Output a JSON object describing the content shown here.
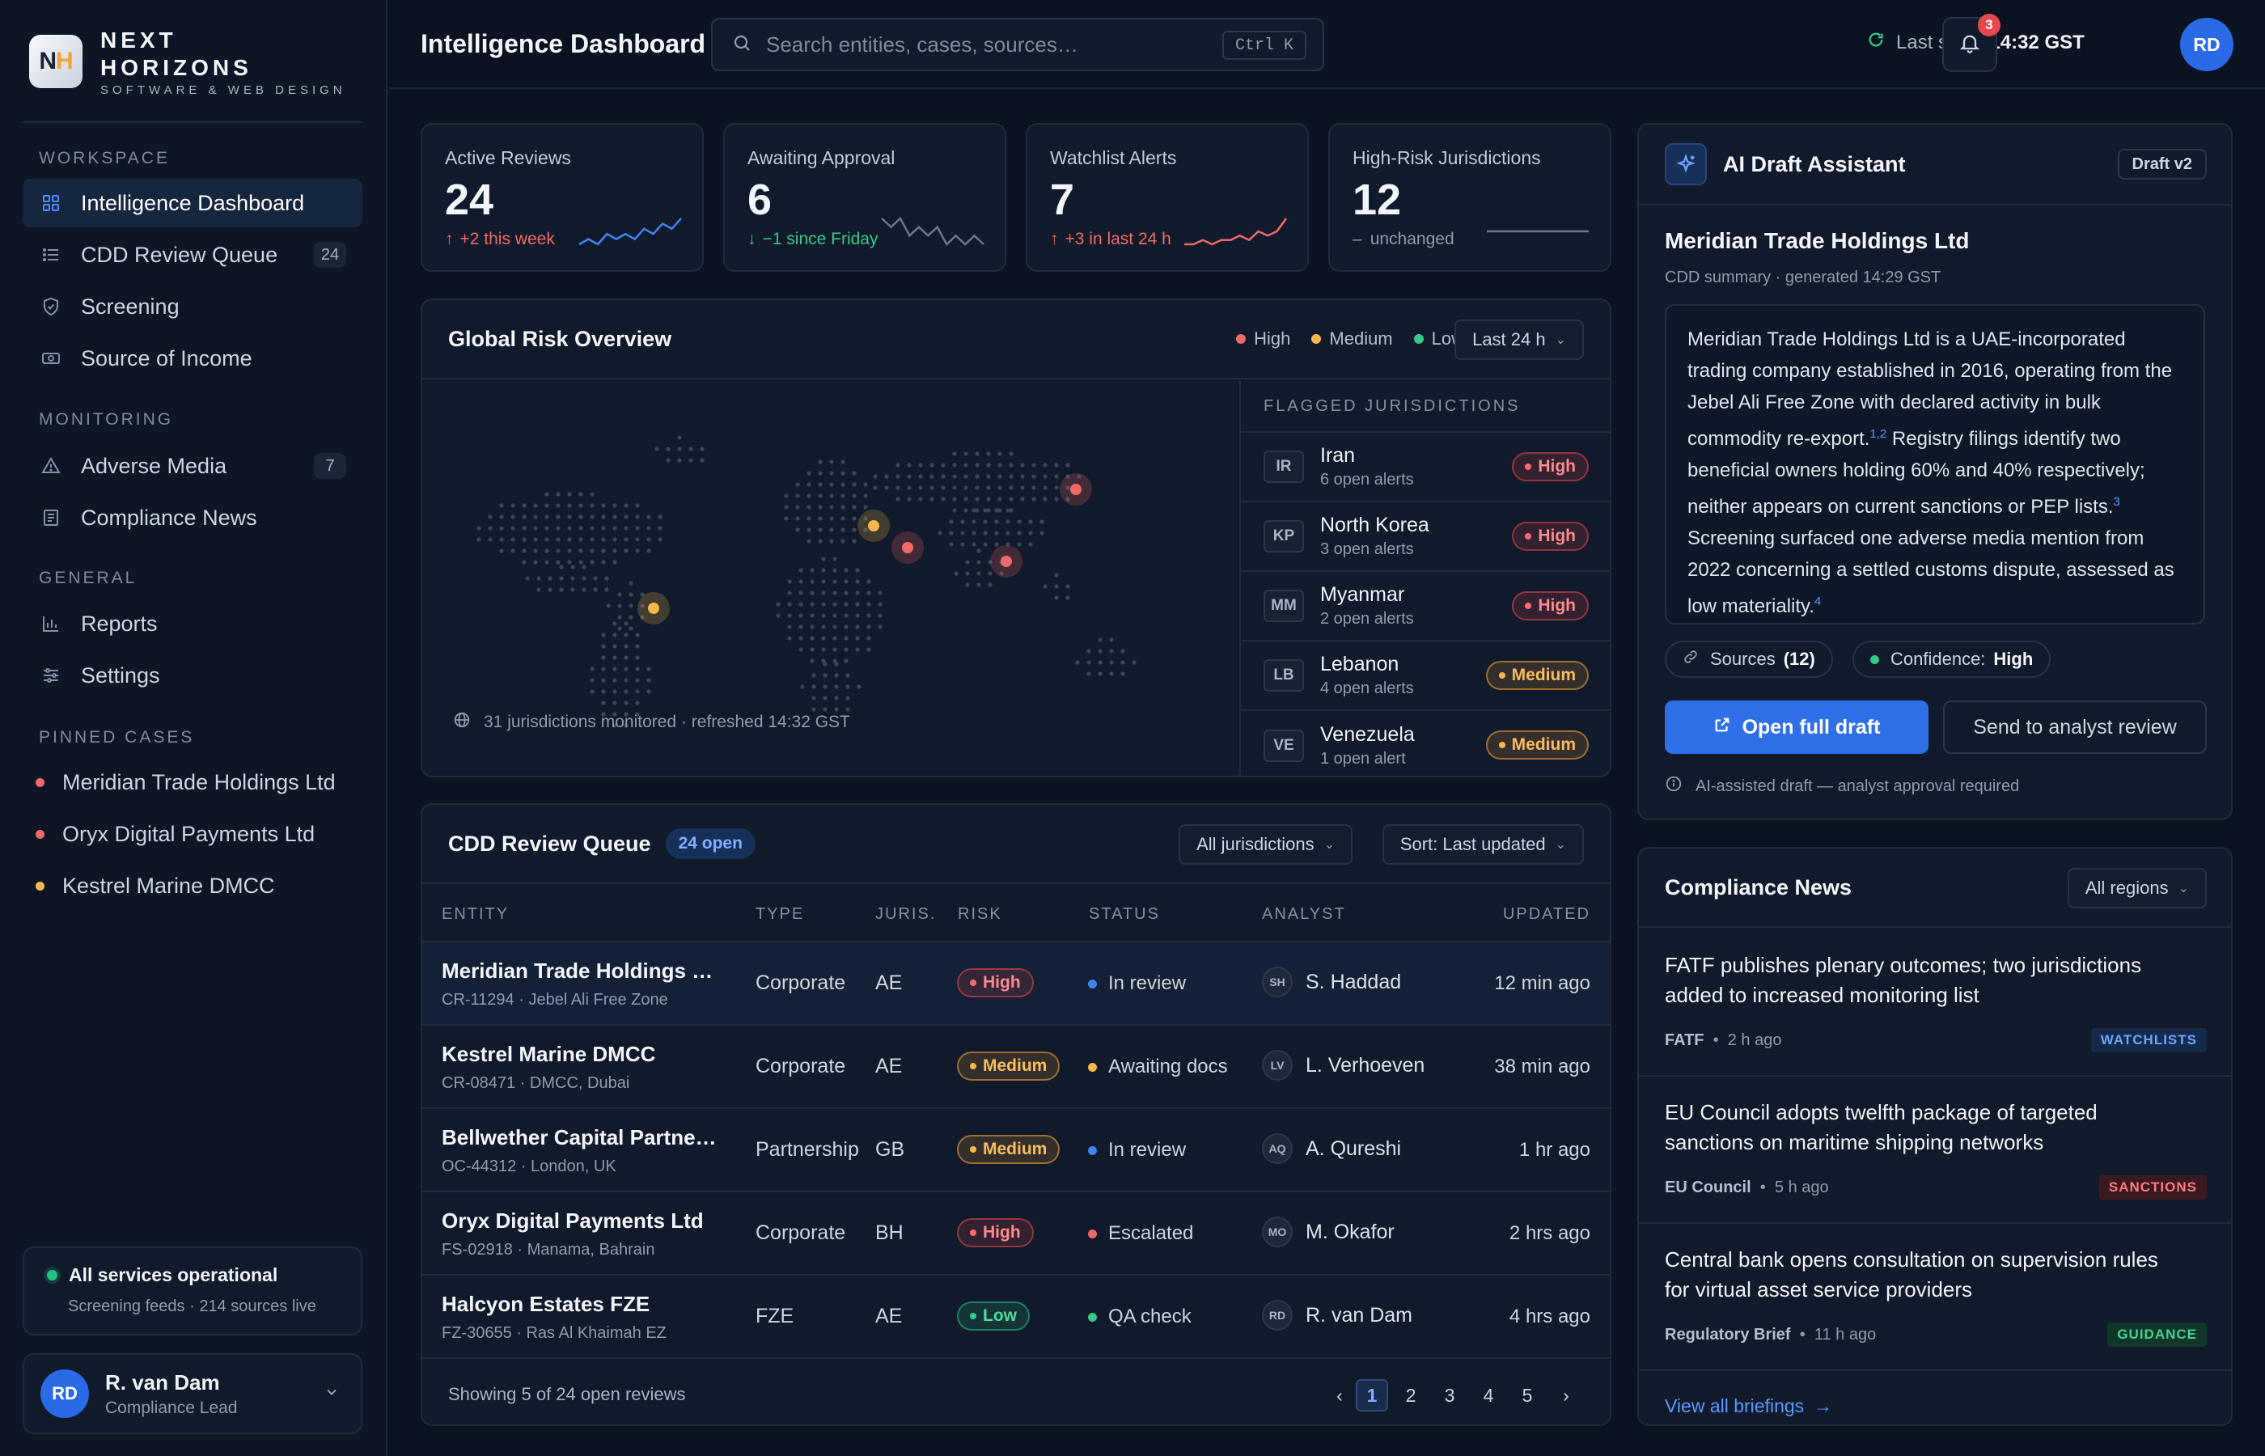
{
  "brand": {
    "logo": "NH",
    "name": "NEXT HORIZONS",
    "line1": "NEXT",
    "line2": "HORIZONS",
    "tagline": "SOFTWARE & WEB DESIGN"
  },
  "sidebar": {
    "workspace_label": "WORKSPACE",
    "workspace": [
      {
        "label": "Intelligence Dashboard",
        "icon": "grid-icon",
        "active": true
      },
      {
        "label": "CDD Review Queue",
        "icon": "list-icon",
        "count": "24"
      },
      {
        "label": "Screening",
        "icon": "shield-icon"
      },
      {
        "label": "Source of Income",
        "icon": "cash-icon"
      }
    ],
    "monitoring_label": "MONITORING",
    "monitoring": [
      {
        "label": "Adverse Media",
        "icon": "warning-icon",
        "count": "7"
      },
      {
        "label": "Compliance News",
        "icon": "newspaper-icon"
      }
    ],
    "general_label": "GENERAL",
    "general": [
      {
        "label": "Reports",
        "icon": "bar-chart-icon"
      },
      {
        "label": "Settings",
        "icon": "sliders-icon"
      }
    ],
    "pinned_label": "PINNED CASES",
    "pinned": [
      {
        "label": "Meridian Trade Holdings Ltd",
        "color": "#f06a6a"
      },
      {
        "label": "Oryx Digital Payments Ltd",
        "color": "#f06a6a"
      },
      {
        "label": "Kestrel Marine DMCC",
        "color": "#f8b84e"
      }
    ],
    "status": {
      "title": "All services operational",
      "sub": "Screening feeds · 214 sources live"
    },
    "user": {
      "initials": "RD",
      "name": "R. van Dam",
      "role": "Compliance Lead"
    }
  },
  "header": {
    "title": "Intelligence Dashboard",
    "search_placeholder": "Search entities, cases, sources…",
    "shortcut": "Ctrl K",
    "sync_label": "Last sync",
    "sync_time": "14:32 GST",
    "notifications": "3",
    "avatar": "RD"
  },
  "kpis": [
    {
      "label": "Active Reviews",
      "value": "24",
      "delta": "+2 this week",
      "trend": "up",
      "color": "#3f84f5",
      "spark": [
        4,
        5,
        4,
        6,
        5,
        6,
        5,
        7,
        6,
        8,
        7,
        9
      ]
    },
    {
      "label": "Awaiting Approval",
      "value": "6",
      "delta": "−1 since Friday",
      "trend": "down",
      "color": "#6b778a",
      "spark": [
        8,
        7,
        8,
        6,
        7,
        6,
        7,
        5,
        6,
        5,
        6,
        5
      ]
    },
    {
      "label": "Watchlist Alerts",
      "value": "7",
      "delta": "+3 in last 24 h",
      "trend": "up",
      "color": "#f06a6a",
      "spark": [
        3,
        3,
        4,
        3,
        4,
        4,
        5,
        4,
        6,
        5,
        6,
        9
      ]
    },
    {
      "label": "High-Risk Jurisdictions",
      "value": "12",
      "delta": "unchanged",
      "trend": "flat",
      "color": "#6b778a",
      "spark": [
        5,
        5,
        5,
        5,
        5,
        5,
        5,
        5,
        5,
        5,
        5,
        5
      ]
    }
  ],
  "risk": {
    "title": "Global Risk Overview",
    "legend": [
      "High",
      "Medium",
      "Low"
    ],
    "colors": {
      "high": "#f06a6a",
      "medium": "#f8b84e",
      "low": "#36c98a"
    },
    "range": "Last 24 h",
    "footer": "31 jurisdictions monitored · refreshed 14:32 GST",
    "flagged_label": "FLAGGED JURISDICTIONS",
    "flagged": [
      {
        "code": "IR",
        "name": "Iran",
        "alerts": "6 open alerts",
        "level": "High"
      },
      {
        "code": "KP",
        "name": "North Korea",
        "alerts": "3 open alerts",
        "level": "High"
      },
      {
        "code": "MM",
        "name": "Myanmar",
        "alerts": "2 open alerts",
        "level": "High"
      },
      {
        "code": "LB",
        "name": "Lebanon",
        "alerts": "4 open alerts",
        "level": "Medium"
      },
      {
        "code": "VE",
        "name": "Venezuela",
        "alerts": "1 open alert",
        "level": "Medium"
      }
    ]
  },
  "queue": {
    "title": "CDD Review Queue",
    "open": "24 open",
    "filter": "All jurisdictions",
    "sort": "Sort: Last updated",
    "columns": [
      "ENTITY",
      "TYPE",
      "JURIS.",
      "RISK",
      "STATUS",
      "ANALYST",
      "UPDATED"
    ],
    "rows": [
      {
        "name": "Meridian Trade Holdings Ltd",
        "sub": "CR-11294 · Jebel Ali Free Zone",
        "type": "Corporate",
        "juris": "AE",
        "risk": "High",
        "status": "In review",
        "status_color": "#3f84f5",
        "analyst_initials": "SH",
        "analyst": "S. Haddad",
        "updated": "12 min ago"
      },
      {
        "name": "Kestrel Marine DMCC",
        "sub": "CR-08471 · DMCC, Dubai",
        "type": "Corporate",
        "juris": "AE",
        "risk": "Medium",
        "status": "Awaiting docs",
        "status_color": "#f8b84e",
        "analyst_initials": "LV",
        "analyst": "L. Verhoeven",
        "updated": "38 min ago"
      },
      {
        "name": "Bellwether Capital Partners LLP",
        "sub": "OC-44312 · London, UK",
        "type": "Partnership",
        "juris": "GB",
        "risk": "Medium",
        "status": "In review",
        "status_color": "#3f84f5",
        "analyst_initials": "AQ",
        "analyst": "A. Qureshi",
        "updated": "1 hr ago"
      },
      {
        "name": "Oryx Digital Payments Ltd",
        "sub": "FS-02918 · Manama, Bahrain",
        "type": "Corporate",
        "juris": "BH",
        "risk": "High",
        "status": "Escalated",
        "status_color": "#f06a6a",
        "analyst_initials": "MO",
        "analyst": "M. Okafor",
        "updated": "2 hrs ago"
      },
      {
        "name": "Halcyon Estates FZE",
        "sub": "FZ-30655 · Ras Al Khaimah EZ",
        "type": "FZE",
        "juris": "AE",
        "risk": "Low",
        "status": "QA check",
        "status_color": "#36c98a",
        "analyst_initials": "RD",
        "analyst": "R. van Dam",
        "updated": "4 hrs ago"
      }
    ],
    "footer": "Showing 5 of 24 open reviews",
    "pages": [
      "1",
      "2",
      "3",
      "4",
      "5"
    ],
    "prev": "‹",
    "next": "›"
  },
  "ai": {
    "title": "AI Draft Assistant",
    "version": "Draft v2",
    "entity": "Meridian Trade Holdings Ltd",
    "sub": "CDD summary · generated 14:29 GST",
    "p1": "Meridian Trade Holdings Ltd is a UAE-incorporated trading company established in 2016, operating from the Jebel Ali Free Zone with declared activity in bulk commodity re-export.",
    "s1": "1,2",
    "p2": " Registry filings identify two beneficial owners holding 60% and 40% respectively; neither appears on current sanctions or PEP lists.",
    "s2": "3",
    "p3": " Screening surfaced one adverse media mention from 2022 concerning a settled customs dispute, assessed as low materiality.",
    "s3": "4",
    "sources_label": "Sources",
    "sources_count": "(12)",
    "confidence_label": "Confidence:",
    "confidence": "High",
    "open_btn": "Open full draft",
    "send_btn": "Send to analyst review",
    "note": "AI-assisted draft — analyst approval required"
  },
  "news": {
    "title": "Compliance News",
    "filter": "All regions",
    "items": [
      {
        "title": "FATF publishes plenary outcomes; two jurisdictions added to increased monitoring list",
        "source": "FATF",
        "time": "2 h ago",
        "tag": "WATCHLISTS"
      },
      {
        "title": "EU Council adopts twelfth package of targeted sanctions on maritime shipping networks",
        "source": "EU Council",
        "time": "5 h ago",
        "tag": "SANCTIONS"
      },
      {
        "title": "Central bank opens consultation on supervision rules for virtual asset service providers",
        "source": "Regulatory Brief",
        "time": "11 h ago",
        "tag": "GUIDANCE"
      }
    ],
    "view_all": "View all briefings"
  }
}
